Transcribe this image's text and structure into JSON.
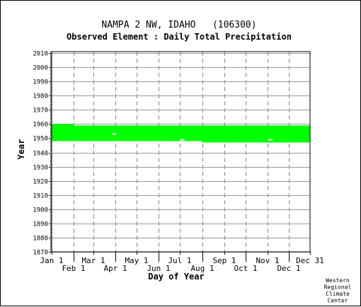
{
  "chart_data": {
    "type": "bar",
    "title": "NAMPA 2 NW, IDAHO   (106300)",
    "subtitle": "Observed Element : Daily Total Precipitation",
    "xlabel": "Day of Year",
    "ylabel": "Year",
    "credit": [
      "Western",
      "Regional",
      "Climate",
      "Center"
    ],
    "xlim": [
      1,
      365
    ],
    "ylim": [
      1870,
      2011
    ],
    "x_ticks": [
      {
        "label": "Jan 1",
        "day": 1,
        "row": 1
      },
      {
        "label": "Feb 1",
        "day": 32,
        "row": 2
      },
      {
        "label": "Mar 1",
        "day": 60,
        "row": 1
      },
      {
        "label": "Apr 1",
        "day": 91,
        "row": 2
      },
      {
        "label": "May 1",
        "day": 121,
        "row": 1
      },
      {
        "label": "Jun 1",
        "day": 152,
        "row": 2
      },
      {
        "label": "Jul 1",
        "day": 182,
        "row": 1
      },
      {
        "label": "Aug 1",
        "day": 213,
        "row": 2
      },
      {
        "label": "Sep 1",
        "day": 244,
        "row": 1
      },
      {
        "label": "Oct 1",
        "day": 274,
        "row": 2
      },
      {
        "label": "Nov 1",
        "day": 305,
        "row": 1
      },
      {
        "label": "Dec 1",
        "day": 335,
        "row": 2
      },
      {
        "label": "Dec 31",
        "day": 365,
        "row": 1
      }
    ],
    "y_ticks": [
      1870,
      1880,
      1890,
      1900,
      1910,
      1920,
      1930,
      1940,
      1950,
      1960,
      1970,
      1980,
      1990,
      2000,
      2010
    ],
    "grid": true,
    "data_color": "#00ff00",
    "coverage": [
      {
        "day_start": 1,
        "day_end": 32,
        "year_start": 1948,
        "year_end": 1960
      },
      {
        "day_start": 32,
        "day_end": 182,
        "year_start": 1948,
        "year_end": 1959
      },
      {
        "day_start": 182,
        "day_end": 213,
        "year_start": 1948,
        "year_end": 1959
      },
      {
        "day_start": 213,
        "day_end": 365,
        "year_start": 1947,
        "year_end": 1959
      }
    ],
    "gaps": [
      {
        "day_start": 86,
        "day_end": 92,
        "year": 1953
      },
      {
        "day_start": 182,
        "day_end": 188,
        "year": 1949
      },
      {
        "day_start": 306,
        "day_end": 312,
        "year": 1949
      }
    ]
  }
}
